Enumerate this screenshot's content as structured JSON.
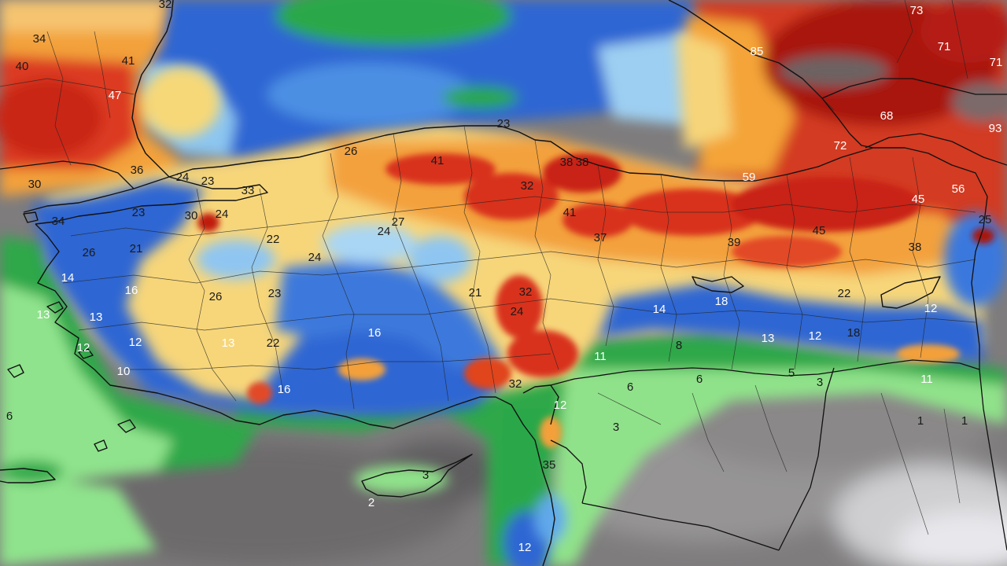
{
  "colors": {
    "sea_blue": "#2f6fd6",
    "sea_lightblue": "#8fc3ef",
    "green": "#2fa84a",
    "light_green": "#8ee08a",
    "yellow": "#f8dc78",
    "orange": "#f3a03a",
    "red": "#d7301f",
    "dark_red": "#9e1010",
    "gray": "#8a8888",
    "light_gray": "#bdbdbd"
  },
  "labels": [
    {
      "text": "32",
      "tone": "dark"
    },
    {
      "text": "34",
      "tone": "dark"
    },
    {
      "text": "40",
      "tone": "dark"
    },
    {
      "text": "41",
      "tone": "dark"
    },
    {
      "text": "47",
      "tone": "light"
    },
    {
      "text": "73",
      "tone": "light"
    },
    {
      "text": "85",
      "tone": "light"
    },
    {
      "text": "71",
      "tone": "light"
    },
    {
      "text": "71",
      "tone": "light"
    },
    {
      "text": "68",
      "tone": "light"
    },
    {
      "text": "93",
      "tone": "light"
    },
    {
      "text": "72",
      "tone": "light"
    },
    {
      "text": "23",
      "tone": "dark"
    },
    {
      "text": "26",
      "tone": "dark"
    },
    {
      "text": "41",
      "tone": "dark"
    },
    {
      "text": "38",
      "tone": "dark"
    },
    {
      "text": "38",
      "tone": "dark"
    },
    {
      "text": "32",
      "tone": "dark"
    },
    {
      "text": "59",
      "tone": "light"
    },
    {
      "text": "36",
      "tone": "dark"
    },
    {
      "text": "24",
      "tone": "dark"
    },
    {
      "text": "23",
      "tone": "dark"
    },
    {
      "text": "33",
      "tone": "dark"
    },
    {
      "text": "30",
      "tone": "dark"
    },
    {
      "text": "45",
      "tone": "light"
    },
    {
      "text": "56",
      "tone": "light"
    },
    {
      "text": "25",
      "tone": "dark"
    },
    {
      "text": "23",
      "tone": "dark"
    },
    {
      "text": "30",
      "tone": "dark"
    },
    {
      "text": "24",
      "tone": "dark"
    },
    {
      "text": "34",
      "tone": "dark"
    },
    {
      "text": "27",
      "tone": "dark"
    },
    {
      "text": "24",
      "tone": "dark"
    },
    {
      "text": "41",
      "tone": "dark"
    },
    {
      "text": "37",
      "tone": "dark"
    },
    {
      "text": "22",
      "tone": "dark"
    },
    {
      "text": "39",
      "tone": "dark"
    },
    {
      "text": "45",
      "tone": "dark"
    },
    {
      "text": "38",
      "tone": "dark"
    },
    {
      "text": "26",
      "tone": "dark"
    },
    {
      "text": "21",
      "tone": "dark"
    },
    {
      "text": "24",
      "tone": "dark"
    },
    {
      "text": "14",
      "tone": "light"
    },
    {
      "text": "16",
      "tone": "light"
    },
    {
      "text": "26",
      "tone": "dark"
    },
    {
      "text": "23",
      "tone": "dark"
    },
    {
      "text": "21",
      "tone": "dark"
    },
    {
      "text": "32",
      "tone": "dark"
    },
    {
      "text": "24",
      "tone": "dark"
    },
    {
      "text": "14",
      "tone": "light"
    },
    {
      "text": "18",
      "tone": "light"
    },
    {
      "text": "22",
      "tone": "dark"
    },
    {
      "text": "12",
      "tone": "light"
    },
    {
      "text": "13",
      "tone": "light"
    },
    {
      "text": "13",
      "tone": "light"
    },
    {
      "text": "12",
      "tone": "light"
    },
    {
      "text": "13",
      "tone": "light"
    },
    {
      "text": "22",
      "tone": "dark"
    },
    {
      "text": "16",
      "tone": "light"
    },
    {
      "text": "13",
      "tone": "light"
    },
    {
      "text": "12",
      "tone": "light"
    },
    {
      "text": "18",
      "tone": "dark"
    },
    {
      "text": "12",
      "tone": "light"
    },
    {
      "text": "8",
      "tone": "dark"
    },
    {
      "text": "10",
      "tone": "light"
    },
    {
      "text": "11",
      "tone": "light"
    },
    {
      "text": "6",
      "tone": "dark"
    },
    {
      "text": "6",
      "tone": "dark"
    },
    {
      "text": "5",
      "tone": "dark"
    },
    {
      "text": "3",
      "tone": "dark"
    },
    {
      "text": "32",
      "tone": "dark"
    },
    {
      "text": "16",
      "tone": "light"
    },
    {
      "text": "12",
      "tone": "light"
    },
    {
      "text": "11",
      "tone": "light"
    },
    {
      "text": "6",
      "tone": "dark"
    },
    {
      "text": "3",
      "tone": "dark"
    },
    {
      "text": "1",
      "tone": "dark"
    },
    {
      "text": "1",
      "tone": "dark"
    },
    {
      "text": "35",
      "tone": "dark"
    },
    {
      "text": "2",
      "tone": "light"
    },
    {
      "text": "3",
      "tone": "dark"
    },
    {
      "text": "12",
      "tone": "light"
    }
  ]
}
